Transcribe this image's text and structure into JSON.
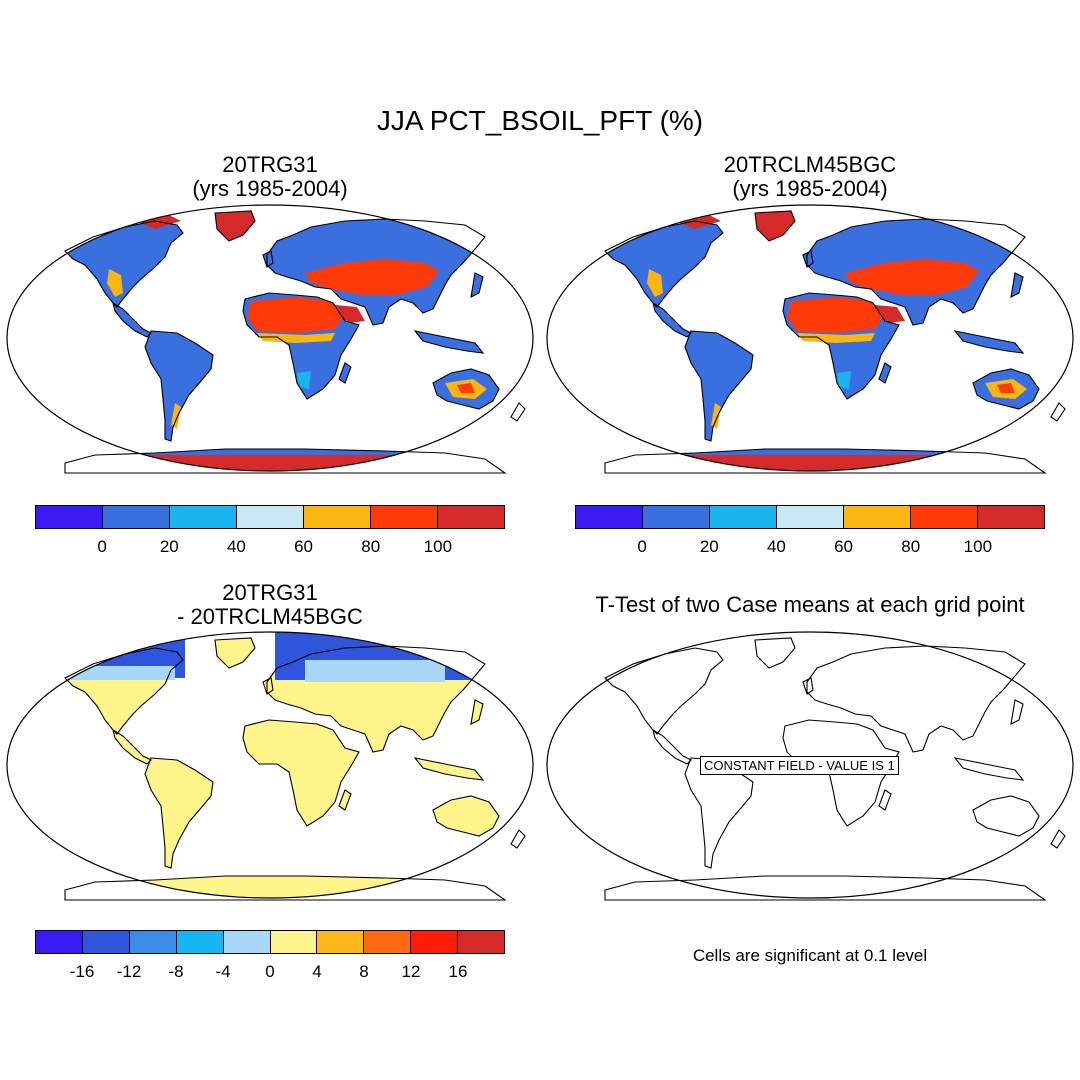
{
  "title": "JJA PCT_BSOIL_PFT (%)",
  "panels": [
    {
      "title_line1": "20TRG31",
      "title_line2": "(yrs 1985-2004)"
    },
    {
      "title_line1": "20TRCLM45BGC",
      "title_line2": "(yrs 1985-2004)"
    },
    {
      "title_line1": "20TRG31",
      "title_line2": "- 20TRCLM45BGC"
    },
    {
      "title_line1": "T-Test of two Case means at each grid point",
      "title_line2": ""
    }
  ],
  "colorbar_abs": {
    "colors": [
      "#3a1af2",
      "#3a6fe0",
      "#1ab4f0",
      "#c8e8f5",
      "#fbb614",
      "#ff3a08",
      "#d62a2a"
    ],
    "tick_labels": [
      "0",
      "20",
      "40",
      "60",
      "80",
      "100"
    ]
  },
  "colorbar_diff": {
    "colors": [
      "#3a1af2",
      "#2f55dc",
      "#3a8ce8",
      "#16b6f2",
      "#a8d8f5",
      "#fff58a",
      "#ffb81a",
      "#ff6a12",
      "#ff1a0a",
      "#d62a2a"
    ],
    "tick_labels": [
      "-16",
      "-12",
      "-8",
      "-4",
      "0",
      "4",
      "8",
      "12",
      "16"
    ]
  },
  "ttest": {
    "constant_field_label": "CONSTANT FIELD - VALUE IS 1",
    "significance_note": "Cells are significant at 0.1 level"
  },
  "map_colors": {
    "land_abs": "#3a6fe0",
    "desert_core": "#ff3a08",
    "desert_edge": "#fbb614",
    "desert_dark": "#d62a2a",
    "desert_margin": "#1ab4f0",
    "diff_land": "#fff58a",
    "diff_north": "#2f55dc",
    "diff_north_light": "#a8d8f5"
  }
}
